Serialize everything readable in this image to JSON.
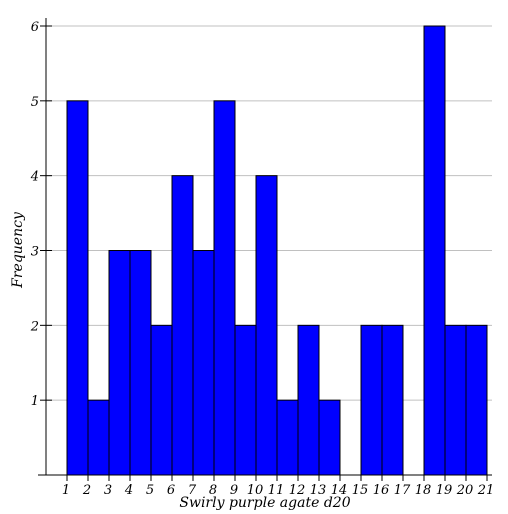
{
  "chart_data": {
    "type": "bar",
    "title": "",
    "xlabel": "Swirly purple agate d20",
    "ylabel": "Frequency",
    "x_ticks": [
      "1",
      "2",
      "3",
      "4",
      "5",
      "6",
      "7",
      "8",
      "9",
      "10",
      "11",
      "12",
      "13",
      "14",
      "15",
      "16",
      "17",
      "18",
      "19",
      "20",
      "21"
    ],
    "y_ticks": [
      "1",
      "2",
      "3",
      "4",
      "5",
      "6"
    ],
    "xlim": [
      1,
      21
    ],
    "ylim": [
      0,
      6
    ],
    "bins": [
      {
        "value": 1,
        "count": 5
      },
      {
        "value": 2,
        "count": 1
      },
      {
        "value": 3,
        "count": 3
      },
      {
        "value": 4,
        "count": 3
      },
      {
        "value": 5,
        "count": 2
      },
      {
        "value": 6,
        "count": 4
      },
      {
        "value": 7,
        "count": 3
      },
      {
        "value": 8,
        "count": 5
      },
      {
        "value": 9,
        "count": 2
      },
      {
        "value": 10,
        "count": 4
      },
      {
        "value": 11,
        "count": 1
      },
      {
        "value": 12,
        "count": 2
      },
      {
        "value": 13,
        "count": 1
      },
      {
        "value": 14,
        "count": 0
      },
      {
        "value": 15,
        "count": 2
      },
      {
        "value": 16,
        "count": 2
      },
      {
        "value": 17,
        "count": 0
      },
      {
        "value": 18,
        "count": 6
      },
      {
        "value": 19,
        "count": 2
      },
      {
        "value": 20,
        "count": 2
      }
    ],
    "grid": "horizontal",
    "bar_color": "#0000ff",
    "bar_edge_color": "#000000",
    "grid_color": "#c0c0c0"
  }
}
